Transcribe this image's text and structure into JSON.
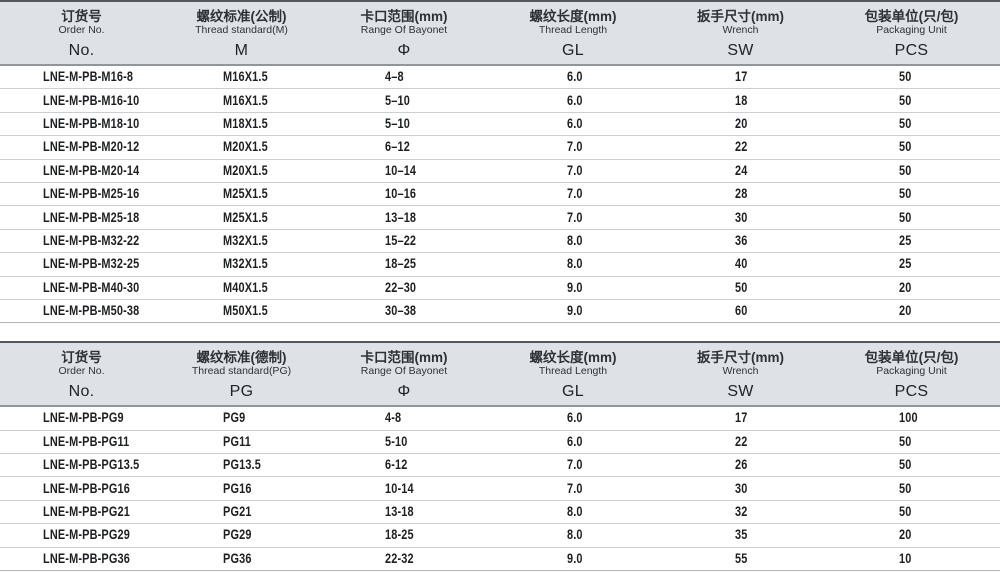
{
  "colors": {
    "header_bg": "#dee2e7",
    "table_top_border": "#54575b",
    "header_bottom_border": "#92969a",
    "row_separator": "#cbced2",
    "data_text": "#1d1f21"
  },
  "tables": [
    {
      "id": "metric",
      "column_keys": [
        "order-no",
        "thread-standard",
        "bayonet-range",
        "thread-length",
        "wrench",
        "packaging-unit"
      ],
      "columns": [
        {
          "cn": "订货号",
          "en": "Order No.",
          "sym": "No."
        },
        {
          "cn": "螺纹标准(公制)",
          "en": "Thread standard(M)",
          "sym": "M"
        },
        {
          "cn": "卡口范围(mm)",
          "en": "Range Of Bayonet",
          "sym": "Φ"
        },
        {
          "cn": "螺纹长度(mm)",
          "en": "Thread Length",
          "sym": "GL"
        },
        {
          "cn": "扳手尺寸(mm)",
          "en": "Wrench",
          "sym": "SW"
        },
        {
          "cn": "包装单位(只/包)",
          "en": "Packaging Unit",
          "sym": "PCS"
        }
      ],
      "rows": [
        [
          "LNE-M-PB-M16-8",
          "M16X1.5",
          "4–8",
          "6.0",
          "17",
          "50"
        ],
        [
          "LNE-M-PB-M16-10",
          "M16X1.5",
          "5–10",
          "6.0",
          "18",
          "50"
        ],
        [
          "LNE-M-PB-M18-10",
          "M18X1.5",
          "5–10",
          "6.0",
          "20",
          "50"
        ],
        [
          "LNE-M-PB-M20-12",
          "M20X1.5",
          "6–12",
          "7.0",
          "22",
          "50"
        ],
        [
          "LNE-M-PB-M20-14",
          "M20X1.5",
          "10–14",
          "7.0",
          "24",
          "50"
        ],
        [
          "LNE-M-PB-M25-16",
          "M25X1.5",
          "10–16",
          "7.0",
          "28",
          "50"
        ],
        [
          "LNE-M-PB-M25-18",
          "M25X1.5",
          "13–18",
          "7.0",
          "30",
          "50"
        ],
        [
          "LNE-M-PB-M32-22",
          "M32X1.5",
          "15–22",
          "8.0",
          "36",
          "25"
        ],
        [
          "LNE-M-PB-M32-25",
          "M32X1.5",
          "18–25",
          "8.0",
          "40",
          "25"
        ],
        [
          "LNE-M-PB-M40-30",
          "M40X1.5",
          "22–30",
          "9.0",
          "50",
          "20"
        ],
        [
          "LNE-M-PB-M50-38",
          "M50X1.5",
          "30–38",
          "9.0",
          "60",
          "20"
        ]
      ]
    },
    {
      "id": "pg",
      "column_keys": [
        "order-no",
        "thread-standard",
        "bayonet-range",
        "thread-length",
        "wrench",
        "packaging-unit"
      ],
      "columns": [
        {
          "cn": "订货号",
          "en": "Order No.",
          "sym": "No."
        },
        {
          "cn": "螺纹标准(德制)",
          "en": "Thread standard(PG)",
          "sym": "PG"
        },
        {
          "cn": "卡口范围(mm)",
          "en": "Range Of Bayonet",
          "sym": "Φ"
        },
        {
          "cn": "螺纹长度(mm)",
          "en": "Thread Length",
          "sym": "GL"
        },
        {
          "cn": "扳手尺寸(mm)",
          "en": "Wrench",
          "sym": "SW"
        },
        {
          "cn": "包装单位(只/包)",
          "en": "Packaging Unit",
          "sym": "PCS"
        }
      ],
      "rows": [
        [
          "LNE-M-PB-PG9",
          "PG9",
          "4-8",
          "6.0",
          "17",
          "100"
        ],
        [
          "LNE-M-PB-PG11",
          "PG11",
          "5-10",
          "6.0",
          "22",
          "50"
        ],
        [
          "LNE-M-PB-PG13.5",
          "PG13.5",
          "6-12",
          "7.0",
          "26",
          "50"
        ],
        [
          "LNE-M-PB-PG16",
          "PG16",
          "10-14",
          "7.0",
          "30",
          "50"
        ],
        [
          "LNE-M-PB-PG21",
          "PG21",
          "13-18",
          "8.0",
          "32",
          "50"
        ],
        [
          "LNE-M-PB-PG29",
          "PG29",
          "18-25",
          "8.0",
          "35",
          "20"
        ],
        [
          "LNE-M-PB-PG36",
          "PG36",
          "22-32",
          "9.0",
          "55",
          "10"
        ]
      ]
    }
  ]
}
